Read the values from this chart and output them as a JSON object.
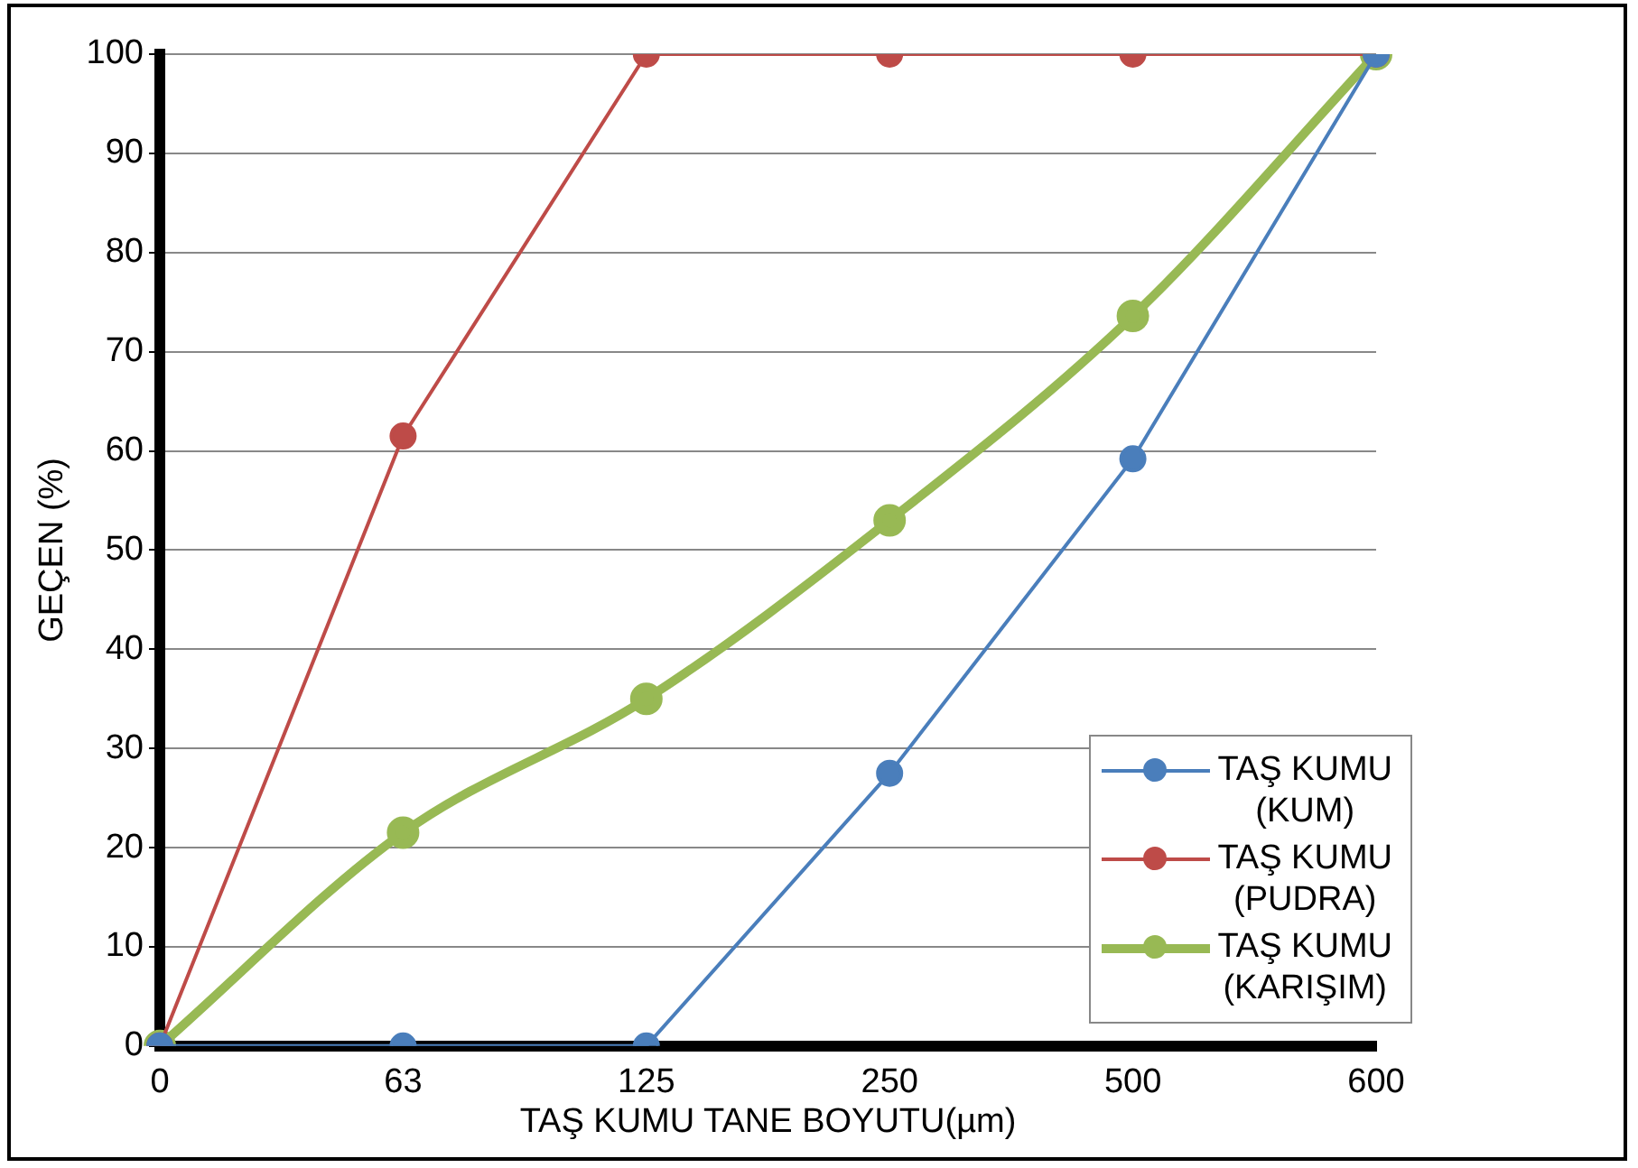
{
  "chart_data": {
    "type": "line",
    "xlabel": "TAŞ KUMU TANE BOYUTU(µm)",
    "ylabel": "GEÇEN (%)",
    "categories": [
      "0",
      "63",
      "125",
      "250",
      "500",
      "600"
    ],
    "series": [
      {
        "name": "TAŞ KUMU (KUM)",
        "color": "#4a7ebb",
        "values": [
          0,
          0,
          0,
          27.5,
          59.2,
          100
        ]
      },
      {
        "name": "TAŞ KUMU (PUDRA)",
        "color": "#be4b48",
        "values": [
          0,
          61.5,
          100,
          100,
          100,
          100
        ]
      },
      {
        "name": "TAŞ KUMU (KARIŞIM)",
        "color": "#98b954",
        "values": [
          0,
          21.5,
          35,
          53,
          73.6,
          100
        ]
      }
    ],
    "ylim": [
      0,
      100
    ],
    "yticks": [
      0,
      10,
      20,
      30,
      40,
      50,
      60,
      70,
      80,
      90,
      100
    ],
    "grid": "y",
    "legend": "bottom right",
    "marker": "circle",
    "line_style": "solid"
  }
}
